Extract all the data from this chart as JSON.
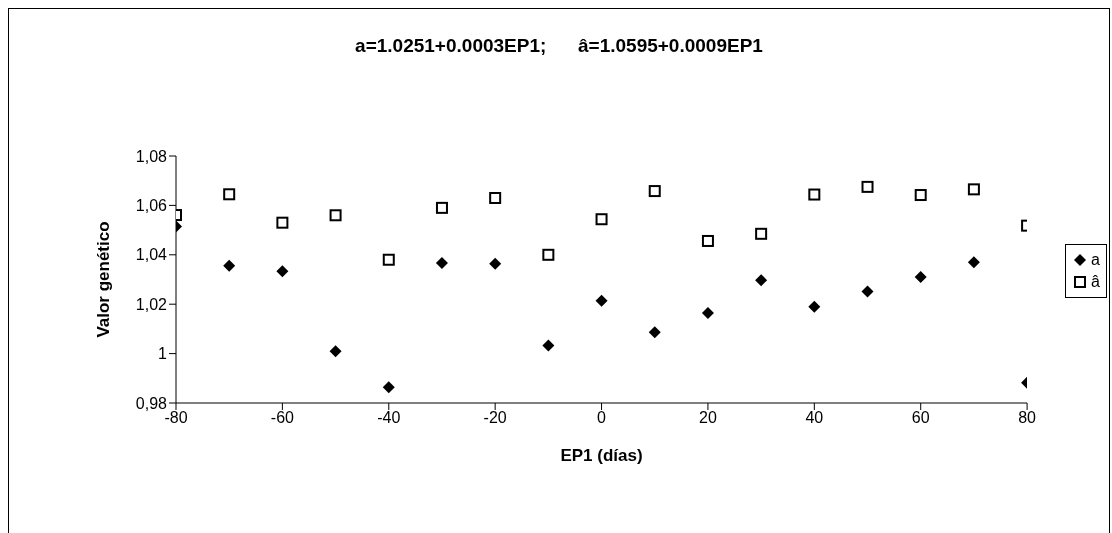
{
  "chart_data": {
    "type": "scatter",
    "title": "a=1.0251+0.0003EP1;      â=1.0595+0.0009EP1",
    "xlabel": "EP1 (días)",
    "ylabel": "Valor genético",
    "x": [
      -80,
      -70,
      -60,
      -50,
      -40,
      -30,
      -20,
      -10,
      0,
      10,
      20,
      30,
      40,
      50,
      60,
      70,
      80
    ],
    "series": [
      {
        "name": "a",
        "color": "#000000",
        "marker": "diamond",
        "values": [
          1.0515,
          1.0356,
          1.0333,
          1.001,
          0.9864,
          1.0367,
          1.0364,
          1.0033,
          1.0214,
          1.0086,
          1.0164,
          1.0297,
          1.019,
          1.0251,
          1.031,
          1.037,
          0.9882
        ]
      },
      {
        "name": "â",
        "color": "#000000",
        "marker": "square",
        "values": [
          1.0561,
          1.0645,
          1.053,
          1.056,
          1.038,
          1.059,
          1.063,
          1.04,
          1.0544,
          1.0658,
          1.0456,
          1.0485,
          1.0644,
          1.0675,
          1.0642,
          1.0665,
          1.0518
        ]
      }
    ],
    "xlim": [
      -80,
      80
    ],
    "xticks": [
      -80,
      -60,
      -40,
      -20,
      0,
      20,
      40,
      60,
      80
    ],
    "ylim": [
      0.98,
      1.08
    ],
    "yticks": [
      {
        "value": 0.98,
        "label": "0,98"
      },
      1,
      {
        "value": 1.02,
        "label": "1,02"
      },
      {
        "value": 1.04,
        "label": "1,04"
      },
      {
        "value": 1.06,
        "label": "1,06"
      },
      {
        "value": 1.08,
        "label": "1,08"
      }
    ],
    "grid": false,
    "legend": "right"
  }
}
